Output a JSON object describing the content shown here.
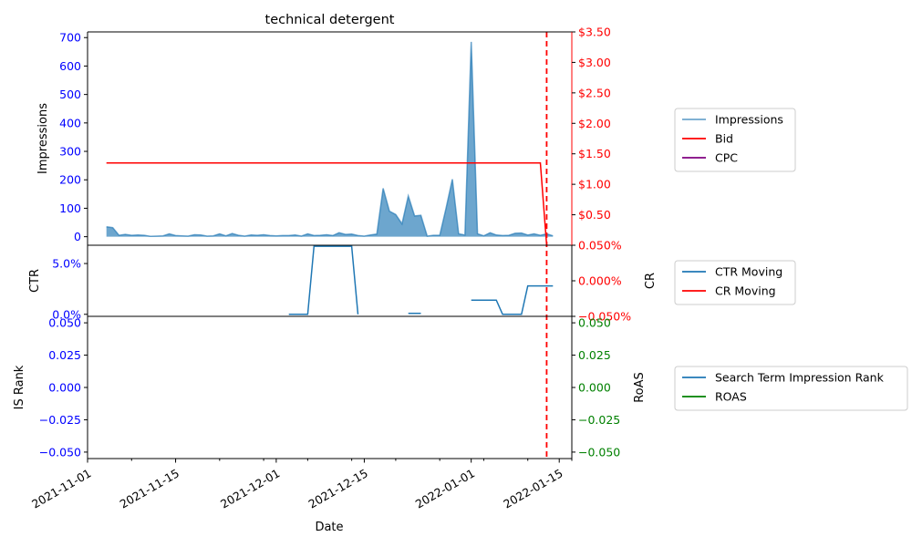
{
  "chart_data": [
    {
      "panel": "top",
      "type": "area",
      "title": "technical detergent",
      "ylabel": "Impressions",
      "ylabel_right": "",
      "ylim": [
        -30,
        720
      ],
      "yticks": [
        0,
        100,
        200,
        300,
        400,
        500,
        600,
        700
      ],
      "ylim_right": [
        0,
        3.5
      ],
      "yticks_right": [
        0,
        0.5,
        1.0,
        1.5,
        2.0,
        2.5,
        3.0,
        3.5
      ],
      "ytick_labels_right": [
        "",
        "$0.50",
        "$1.00",
        "$1.50",
        "$2.00",
        "$2.50",
        "$3.00",
        "$3.50"
      ],
      "series": [
        {
          "name": "Impressions",
          "axis": "left",
          "color": "#1f77b4",
          "points": [
            [
              "2021-11-04",
              35
            ],
            [
              "2021-11-05",
              32
            ],
            [
              "2021-11-06",
              5
            ],
            [
              "2021-11-07",
              8
            ],
            [
              "2021-11-08",
              5
            ],
            [
              "2021-11-09",
              6
            ],
            [
              "2021-11-10",
              5
            ],
            [
              "2021-11-11",
              1
            ],
            [
              "2021-11-12",
              2
            ],
            [
              "2021-11-13",
              3
            ],
            [
              "2021-11-14",
              10
            ],
            [
              "2021-11-15",
              4
            ],
            [
              "2021-11-16",
              3
            ],
            [
              "2021-11-17",
              2
            ],
            [
              "2021-11-18",
              7
            ],
            [
              "2021-11-19",
              6
            ],
            [
              "2021-11-20",
              2
            ],
            [
              "2021-11-21",
              3
            ],
            [
              "2021-11-22",
              10
            ],
            [
              "2021-11-23",
              3
            ],
            [
              "2021-11-24",
              11
            ],
            [
              "2021-11-25",
              5
            ],
            [
              "2021-11-26",
              2
            ],
            [
              "2021-11-27",
              6
            ],
            [
              "2021-11-28",
              5
            ],
            [
              "2021-11-29",
              7
            ],
            [
              "2021-11-30",
              4
            ],
            [
              "2021-12-01",
              3
            ],
            [
              "2021-12-02",
              4
            ],
            [
              "2021-12-03",
              4
            ],
            [
              "2021-12-04",
              6
            ],
            [
              "2021-12-05",
              2
            ],
            [
              "2021-12-06",
              10
            ],
            [
              "2021-12-07",
              4
            ],
            [
              "2021-12-08",
              5
            ],
            [
              "2021-12-09",
              7
            ],
            [
              "2021-12-10",
              4
            ],
            [
              "2021-12-11",
              14
            ],
            [
              "2021-12-12",
              8
            ],
            [
              "2021-12-13",
              9
            ],
            [
              "2021-12-14",
              4
            ],
            [
              "2021-12-15",
              2
            ],
            [
              "2021-12-16",
              6
            ],
            [
              "2021-12-17",
              9
            ],
            [
              "2021-12-18",
              170
            ],
            [
              "2021-12-19",
              90
            ],
            [
              "2021-12-20",
              78
            ],
            [
              "2021-12-21",
              45
            ],
            [
              "2021-12-22",
              143
            ],
            [
              "2021-12-23",
              73
            ],
            [
              "2021-12-24",
              75
            ],
            [
              "2021-12-25",
              2
            ],
            [
              "2021-12-26",
              5
            ],
            [
              "2021-12-27",
              5
            ],
            [
              "2021-12-28",
              100
            ],
            [
              "2021-12-29",
              202
            ],
            [
              "2021-12-30",
              10
            ],
            [
              "2021-12-31",
              6
            ],
            [
              "2022-01-01",
              685
            ],
            [
              "2022-01-02",
              10
            ],
            [
              "2022-01-03",
              3
            ],
            [
              "2022-01-04",
              14
            ],
            [
              "2022-01-05",
              6
            ],
            [
              "2022-01-06",
              4
            ],
            [
              "2022-01-07",
              5
            ],
            [
              "2022-01-08",
              12
            ],
            [
              "2022-01-09",
              13
            ],
            [
              "2022-01-10",
              6
            ],
            [
              "2022-01-11",
              10
            ],
            [
              "2022-01-12",
              5
            ],
            [
              "2022-01-13",
              10
            ],
            [
              "2022-01-14",
              3
            ]
          ]
        },
        {
          "name": "Bid",
          "axis": "right",
          "color": "#ff0000",
          "points": [
            [
              "2021-11-04",
              1.35
            ],
            [
              "2022-01-12",
              1.35
            ],
            [
              "2022-01-13",
              0.0
            ]
          ]
        },
        {
          "name": "CPC",
          "axis": "right",
          "color": "#800080",
          "points": []
        }
      ]
    },
    {
      "panel": "middle",
      "type": "line",
      "ylabel": "CTR",
      "ylabel_right": "CR",
      "ylim": [
        -0.002,
        0.068
      ],
      "yticks": [
        0,
        0.05
      ],
      "ytick_labels": [
        "0.0%",
        "5.0%"
      ],
      "ylim_right": [
        -0.05,
        0.05
      ],
      "yticks_right": [
        -0.05,
        0,
        0.05
      ],
      "ytick_labels_right": [
        "−0.050%",
        "0.000%",
        "0.050%"
      ],
      "series": [
        {
          "name": "CTR Moving",
          "axis": "left",
          "color": "#1f77b4",
          "segments": [
            [
              [
                "2021-12-03",
                0.0
              ],
              [
                "2021-12-06",
                0.0
              ],
              [
                "2021-12-07",
                0.067
              ],
              [
                "2021-12-13",
                0.067
              ],
              [
                "2021-12-14",
                0.0
              ]
            ],
            [
              [
                "2021-12-22",
                0.001
              ],
              [
                "2021-12-24",
                0.001
              ]
            ],
            [
              [
                "2022-01-01",
                0.014
              ],
              [
                "2022-01-05",
                0.014
              ],
              [
                "2022-01-06",
                0.0
              ],
              [
                "2022-01-09",
                0.0
              ],
              [
                "2022-01-10",
                0.028
              ],
              [
                "2022-01-14",
                0.028
              ]
            ]
          ]
        },
        {
          "name": "CR Moving",
          "axis": "right",
          "color": "#ff0000",
          "segments": []
        }
      ]
    },
    {
      "panel": "bottom",
      "type": "line",
      "ylabel": "IS Rank",
      "ylabel_right": "RoAS",
      "xlabel": "Date",
      "ylim": [
        -0.055,
        0.055
      ],
      "yticks": [
        -0.05,
        -0.025,
        0,
        0.025,
        0.05
      ],
      "ytick_labels": [
        "−0.050",
        "−0.025",
        "0.000",
        "0.025",
        "0.050"
      ],
      "ylim_right": [
        -0.055,
        0.055
      ],
      "yticks_right": [
        -0.05,
        -0.025,
        0,
        0.025,
        0.05
      ],
      "ytick_labels_right": [
        "−0.050",
        "−0.025",
        "0.000",
        "0.025",
        "0.050"
      ],
      "xlim": [
        "2021-11-01",
        "2022-01-17"
      ],
      "xticks": [
        "2021-11-01",
        "2021-11-15",
        "2021-12-01",
        "2021-12-15",
        "2022-01-01",
        "2022-01-15"
      ],
      "series": [
        {
          "name": "Search Term Impression Rank",
          "axis": "left",
          "color": "#1f77b4",
          "points": []
        },
        {
          "name": "ROAS",
          "axis": "right",
          "color": "#008000",
          "points": []
        }
      ]
    }
  ],
  "marker_date": "2022-01-13",
  "colors": {
    "left_tick": "#0000ff",
    "right_tick_top": "#ff0000",
    "right_tick_middle": "#ff0000",
    "right_tick_bottom": "#008000",
    "marker": "#ff0000",
    "axis": "#000000"
  }
}
